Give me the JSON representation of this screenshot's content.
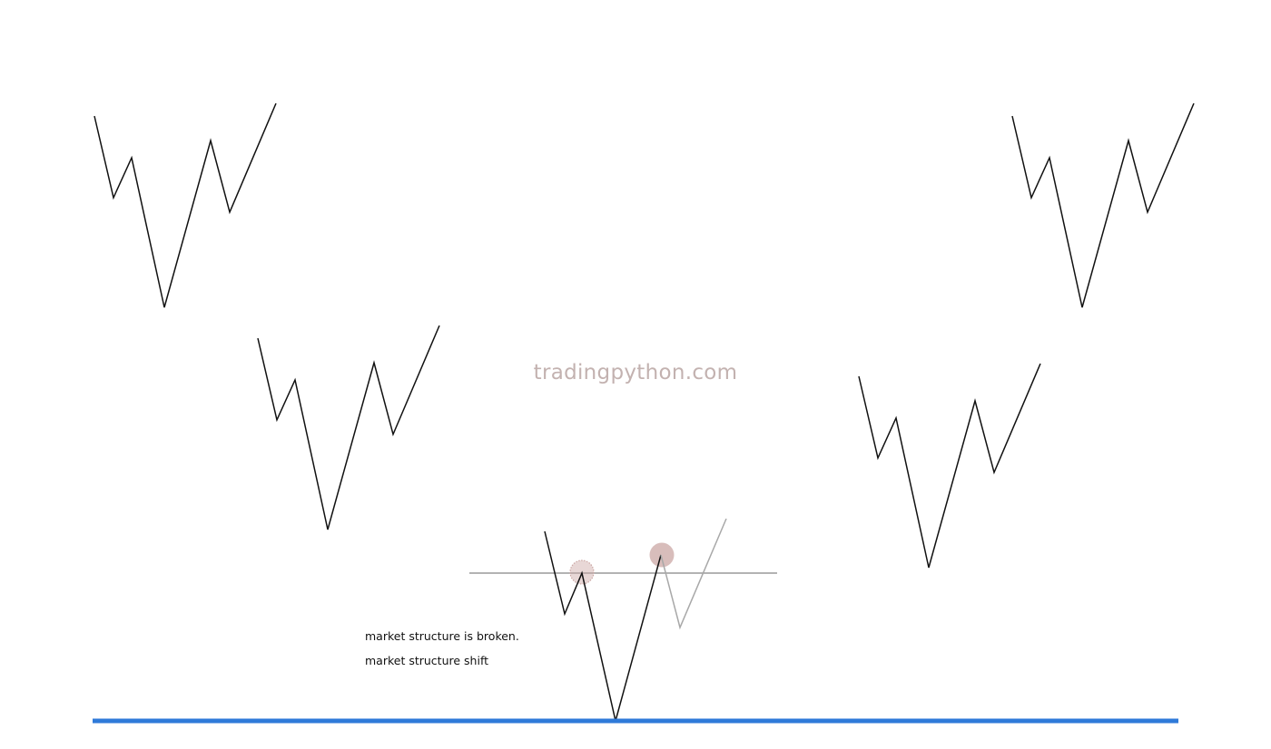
{
  "watermark": {
    "text": "tradingpython.com",
    "color": "#c3b2b0"
  },
  "annotations": {
    "broken": "market structure is broken.",
    "shift": "market structure shift"
  },
  "colors": {
    "zigzag": "#111111",
    "faded_leg": "#a8a8a8",
    "structure_level": "#9a9a9a",
    "marker_fill": "#cba7a4",
    "baseline": "#2f7ad9",
    "background": "#ffffff"
  },
  "diagram": {
    "pattern_count": 5,
    "patterns": [
      "top-left",
      "top-right",
      "middle-left",
      "middle-right",
      "bottom-center"
    ],
    "bottom_center": {
      "has_structure_level": true,
      "markers": [
        "broken-level-marker",
        "higher-high-marker"
      ],
      "faded_last_legs": true
    },
    "baseline": true
  }
}
